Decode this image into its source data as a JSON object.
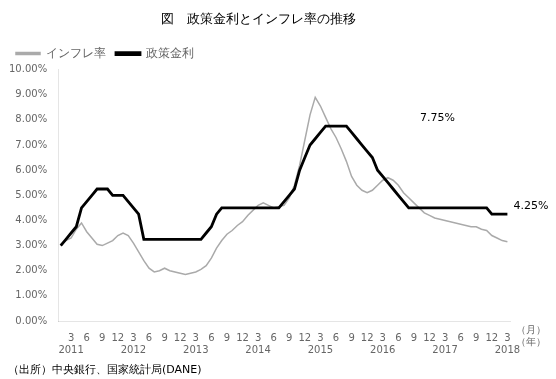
{
  "chart_data": {
    "type": "line",
    "title": "図　政策金利とインフレ率の推移",
    "source": "（出所）中央銀行、国家統計局(DANE)",
    "xlabel": [
      "（月）",
      "（年）"
    ],
    "categories": [
      null,
      null,
      [
        "3",
        "2011"
      ],
      null,
      null,
      "6",
      null,
      null,
      "9",
      null,
      null,
      "12",
      null,
      null,
      [
        "3",
        "2012"
      ],
      null,
      null,
      "6",
      null,
      null,
      "9",
      null,
      null,
      "12",
      null,
      null,
      [
        "3",
        "2013"
      ],
      null,
      null,
      "6",
      null,
      null,
      "9",
      null,
      null,
      "12",
      null,
      null,
      [
        "3",
        "2014"
      ],
      null,
      null,
      "6",
      null,
      null,
      "9",
      null,
      null,
      "12",
      null,
      null,
      [
        "3",
        "2015"
      ],
      null,
      null,
      "6",
      null,
      null,
      "9",
      null,
      null,
      "12",
      null,
      null,
      [
        "3",
        "2016"
      ],
      null,
      null,
      "6",
      null,
      null,
      "9",
      null,
      null,
      "12",
      null,
      null,
      [
        "3",
        "2017"
      ],
      null,
      null,
      "6",
      null,
      null,
      "9",
      null,
      null,
      "12",
      null,
      null,
      [
        "3",
        "2018"
      ]
    ],
    "series": [
      {
        "name": "インフレ率",
        "color": "#aaaaaa",
        "values": [
          0.0305,
          0.032,
          0.033,
          0.0365,
          0.039,
          0.0355,
          0.033,
          0.0305,
          0.03,
          0.031,
          0.032,
          0.034,
          0.035,
          0.034,
          0.031,
          0.0275,
          0.024,
          0.021,
          0.0195,
          0.02,
          0.021,
          0.02,
          0.0195,
          0.019,
          0.0185,
          0.019,
          0.0195,
          0.0205,
          0.022,
          0.025,
          0.029,
          0.032,
          0.0345,
          0.036,
          0.038,
          0.0395,
          0.042,
          0.044,
          0.046,
          0.047,
          0.046,
          0.045,
          0.0455,
          0.046,
          0.049,
          0.054,
          0.062,
          0.072,
          0.082,
          0.089,
          0.0855,
          0.081,
          0.0765,
          0.073,
          0.0685,
          0.0635,
          0.0575,
          0.054,
          0.052,
          0.051,
          0.052,
          0.054,
          0.056,
          0.057,
          0.056,
          0.054,
          0.051,
          0.049,
          0.047,
          0.045,
          0.043,
          0.042,
          0.041,
          0.0405,
          0.04,
          0.0395,
          0.039,
          0.0385,
          0.038,
          0.0375,
          0.0375,
          0.0365,
          0.036,
          0.034,
          0.033,
          0.032,
          0.0315
        ]
      },
      {
        "name": "政策金利",
        "color": "#000000",
        "values": [
          0.03,
          0.0325,
          0.035,
          0.0375,
          0.045,
          0.0475,
          0.05,
          0.0525,
          0.0525,
          0.0525,
          0.05,
          0.05,
          0.05,
          0.0475,
          0.045,
          0.0425,
          0.0325,
          0.0325,
          0.0325,
          0.0325,
          0.0325,
          0.0325,
          0.0325,
          0.0325,
          0.0325,
          0.0325,
          0.0325,
          0.0325,
          0.035,
          0.0375,
          0.0425,
          0.045,
          0.045,
          0.045,
          0.045,
          0.045,
          0.045,
          0.045,
          0.045,
          0.045,
          0.045,
          0.045,
          0.045,
          0.0475,
          0.05,
          0.0525,
          0.06,
          0.065,
          0.07,
          0.0725,
          0.075,
          0.0775,
          0.0775,
          0.0775,
          0.0775,
          0.0775,
          0.075,
          0.0725,
          0.07,
          0.0675,
          0.065,
          0.06,
          0.0575,
          0.055,
          0.0525,
          0.05,
          0.0475,
          0.045,
          0.045,
          0.045,
          0.045,
          0.045,
          0.045,
          0.045,
          0.045,
          0.045,
          0.045,
          0.045,
          0.045,
          0.045,
          0.045,
          0.045,
          0.045,
          0.0425,
          0.0425,
          0.0425,
          0.0425
        ]
      }
    ],
    "ylim": [
      0.0,
      0.1
    ],
    "yticks": [
      {
        "value": 0.0,
        "label": "0.00%"
      },
      {
        "value": 0.01,
        "label": "1.00%"
      },
      {
        "value": 0.02,
        "label": "2.00%"
      },
      {
        "value": 0.03,
        "label": "3.00%"
      },
      {
        "value": 0.04,
        "label": "4.00%"
      },
      {
        "value": 0.05,
        "label": "5.00%"
      },
      {
        "value": 0.06,
        "label": "6.00%"
      },
      {
        "value": 0.07,
        "label": "7.00%"
      },
      {
        "value": 0.08,
        "label": "8.00%"
      },
      {
        "value": 0.09,
        "label": "9.00%"
      },
      {
        "value": 0.1,
        "label": "10.00%"
      }
    ],
    "annotations": [
      {
        "text": "7.75%",
        "x": 68,
        "y": 0.0775
      },
      {
        "text": "4.25%",
        "x": 86,
        "y": 0.0425
      }
    ],
    "grid": false,
    "legend": "upper left"
  }
}
